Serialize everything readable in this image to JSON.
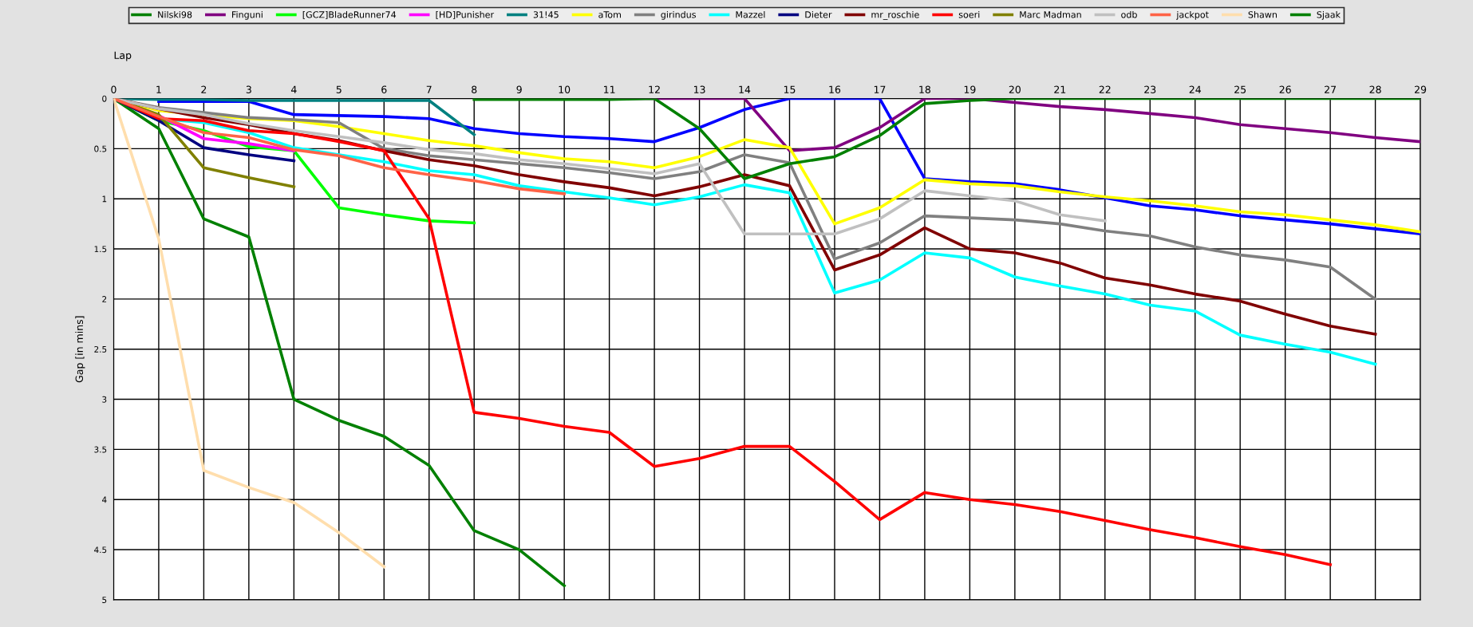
{
  "chart_data": {
    "type": "line",
    "xlabel": "Lap",
    "ylabel": "Gap [in mins]",
    "x": [
      0,
      1,
      2,
      3,
      4,
      5,
      6,
      7,
      8,
      9,
      10,
      11,
      12,
      13,
      14,
      15,
      16,
      17,
      18,
      19,
      20,
      21,
      22,
      23,
      24,
      25,
      26,
      27,
      28,
      29
    ],
    "xlim": [
      0,
      29
    ],
    "xticks": [
      0,
      1,
      2,
      3,
      4,
      5,
      6,
      7,
      8,
      9,
      10,
      11,
      12,
      13,
      14,
      15,
      16,
      17,
      18,
      19,
      20,
      21,
      22,
      23,
      24,
      25,
      26,
      27,
      28,
      29
    ],
    "ylim": [
      5,
      0
    ],
    "yticks": [
      0,
      0.5,
      1,
      1.5,
      2,
      2.5,
      3,
      3.5,
      4,
      4.5,
      5
    ],
    "grid": true,
    "legend": "top",
    "marker": "none",
    "line_style": "solid",
    "series": [
      {
        "name": "Nilski98",
        "color": "#008000",
        "x": [
          0,
          1,
          2,
          3,
          4,
          5,
          6,
          7,
          8,
          9,
          10
        ],
        "values": [
          0,
          0.3,
          1.2,
          1.38,
          3.0,
          3.21,
          3.37,
          3.66,
          4.31,
          4.5,
          4.86
        ]
      },
      {
        "color": "#0000ff",
        "values": [
          null,
          0.03,
          0.03,
          0.03,
          0.16,
          0.17,
          0.18,
          0.2,
          0.3,
          0.35,
          0.38,
          0.4,
          0.43,
          0.29,
          0.11,
          0,
          0,
          0,
          0.8,
          0.83,
          0.85,
          0.91,
          0.99,
          1.07,
          1.11,
          1.17,
          1.21,
          1.25,
          1.3,
          1.35
        ]
      },
      {
        "name": "Finguni",
        "color": "#800080",
        "values": [
          null,
          null,
          null,
          null,
          null,
          null,
          null,
          null,
          null,
          null,
          null,
          0,
          0,
          0,
          0,
          0.52,
          0.49,
          0.29,
          0,
          0,
          0.04,
          0.08,
          0.11,
          0.15,
          0.19,
          0.26,
          0.3,
          0.34,
          0.39,
          0.43
        ]
      },
      {
        "name": "[GCZ]BladeRunner74",
        "color": "#00ff00",
        "x": [
          0,
          1,
          2,
          3,
          4,
          5,
          6,
          7,
          8
        ],
        "values": [
          0,
          0.22,
          0.32,
          0.48,
          0.52,
          1.09,
          1.16,
          1.22,
          1.24
        ]
      },
      {
        "name": "[HD]Punisher",
        "color": "#ff00ff",
        "x": [
          0,
          1,
          2,
          3,
          4
        ],
        "values": [
          0,
          0.17,
          0.4,
          0.45,
          0.52
        ]
      },
      {
        "name": "31!45",
        "color": "#008080",
        "x": [
          0,
          1,
          2,
          3,
          4,
          5,
          6,
          7,
          8
        ],
        "values": [
          0,
          0.01,
          0.01,
          0.02,
          0.02,
          0.02,
          0.02,
          0.02,
          0.36
        ]
      },
      {
        "name": "aTom",
        "color": "#ffff00",
        "values": [
          0,
          0.12,
          0.16,
          0.2,
          0.22,
          0.28,
          0.35,
          0.42,
          0.47,
          0.54,
          0.6,
          0.63,
          0.69,
          0.58,
          0.41,
          0.49,
          1.25,
          1.09,
          0.81,
          0.85,
          0.87,
          0.93,
          0.98,
          1.02,
          1.07,
          1.13,
          1.16,
          1.21,
          1.26,
          1.33
        ]
      },
      {
        "name": "girindus",
        "color": "#808080",
        "x": [
          0,
          1,
          2,
          3,
          4,
          5,
          6,
          7,
          8,
          9,
          10,
          11,
          12,
          13,
          14,
          15,
          16,
          17,
          18,
          19,
          20,
          21,
          22,
          23,
          24,
          25,
          26,
          27,
          28
        ],
        "values": [
          0,
          0.09,
          0.14,
          0.19,
          0.21,
          0.24,
          0.5,
          0.57,
          0.61,
          0.65,
          0.69,
          0.74,
          0.8,
          0.73,
          0.56,
          0.64,
          1.6,
          1.44,
          1.17,
          1.19,
          1.21,
          1.25,
          1.32,
          1.37,
          1.48,
          1.56,
          1.61,
          1.68,
          2.0
        ]
      },
      {
        "name": "Mazzel",
        "color": "#00ffff",
        "x": [
          0,
          1,
          2,
          3,
          4,
          5,
          6,
          7,
          8,
          9,
          10,
          11,
          12,
          13,
          14,
          15,
          16,
          17,
          18,
          19,
          20,
          21,
          22,
          23,
          24,
          25,
          26,
          27,
          28
        ],
        "values": [
          0,
          0.2,
          0.24,
          0.34,
          0.49,
          0.56,
          0.63,
          0.72,
          0.76,
          0.87,
          0.93,
          0.99,
          1.06,
          0.98,
          0.86,
          0.94,
          1.94,
          1.81,
          1.54,
          1.59,
          1.78,
          1.87,
          1.95,
          2.06,
          2.12,
          2.36,
          2.45,
          2.53,
          2.65
        ]
      },
      {
        "name": "Dieter",
        "color": "#000080",
        "x": [
          0,
          1,
          2,
          3,
          4
        ],
        "values": [
          0,
          0.22,
          0.49,
          0.56,
          0.62
        ]
      },
      {
        "name": "mr_roschie",
        "color": "#800000",
        "x": [
          0,
          1,
          2,
          3,
          4,
          5,
          6,
          7,
          8,
          9,
          10,
          11,
          12,
          13,
          14,
          15,
          16,
          17,
          18,
          19,
          20,
          21,
          22,
          23,
          24,
          25,
          26,
          27,
          28
        ],
        "values": [
          0,
          0.1,
          0.19,
          0.26,
          0.35,
          0.42,
          0.52,
          0.61,
          0.67,
          0.76,
          0.83,
          0.89,
          0.97,
          0.88,
          0.76,
          0.87,
          1.71,
          1.56,
          1.29,
          1.5,
          1.54,
          1.64,
          1.79,
          1.86,
          1.95,
          2.02,
          2.15,
          2.27,
          2.35
        ]
      },
      {
        "name": "soeri",
        "color": "#ff0000",
        "x": [
          0,
          1,
          2,
          3,
          4,
          5,
          6,
          7,
          8,
          9,
          10,
          11,
          12,
          13,
          14,
          15,
          16,
          17,
          18,
          19,
          20,
          21,
          22,
          23,
          24,
          25,
          26,
          27
        ],
        "values": [
          0,
          0.2,
          0.22,
          0.32,
          0.35,
          0.43,
          0.52,
          1.2,
          3.13,
          3.19,
          3.27,
          3.33,
          3.67,
          3.59,
          3.47,
          3.47,
          3.82,
          4.2,
          3.93,
          4.0,
          4.05,
          4.12,
          4.21,
          4.3,
          4.38,
          4.47,
          4.55,
          4.65
        ]
      },
      {
        "name": "Marc Madman",
        "color": "#808000",
        "x": [
          0,
          1,
          2,
          3,
          4
        ],
        "values": [
          0,
          0.16,
          0.69,
          0.79,
          0.88
        ]
      },
      {
        "name": "odb",
        "color": "#c0c0c0",
        "x": [
          0,
          1,
          2,
          3,
          4,
          5,
          6,
          7,
          8,
          9,
          10,
          11,
          12,
          13,
          14,
          15,
          16,
          17,
          18,
          19,
          20,
          21,
          22
        ],
        "values": [
          0,
          0.1,
          0.16,
          0.25,
          0.32,
          0.38,
          0.44,
          0.51,
          0.55,
          0.61,
          0.65,
          0.7,
          0.75,
          0.65,
          1.35,
          1.35,
          1.35,
          1.2,
          0.92,
          0.97,
          1.02,
          1.16,
          1.22
        ]
      },
      {
        "name": "jackpot",
        "color": "#ff6347",
        "x": [
          0,
          1,
          2,
          3,
          4,
          5,
          6,
          7,
          8,
          9,
          10
        ],
        "values": [
          0,
          0.18,
          0.34,
          0.39,
          0.51,
          0.57,
          0.69,
          0.76,
          0.82,
          0.9,
          0.95
        ]
      },
      {
        "name": "Shawn",
        "color": "#ffdead",
        "x": [
          0,
          1,
          2,
          3,
          4,
          5,
          6
        ],
        "values": [
          0,
          1.4,
          3.71,
          3.88,
          4.03,
          4.33,
          4.67
        ]
      },
      {
        "name": "Sjaak",
        "color": "#008000",
        "values": [
          null,
          null,
          null,
          null,
          null,
          null,
          null,
          null,
          0.01,
          0.01,
          0.01,
          0.01,
          0,
          0.3,
          0.8,
          0.65,
          0.58,
          0.37,
          0.05,
          0.02,
          0,
          0,
          0,
          0,
          0,
          0,
          0,
          0,
          0,
          0
        ]
      }
    ]
  }
}
